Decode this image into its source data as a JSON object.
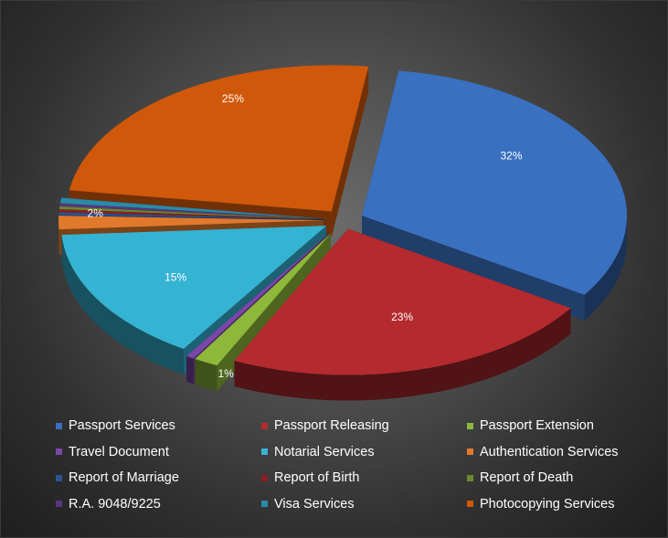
{
  "chart_data": {
    "type": "pie",
    "style": "3d-exploded",
    "legend_position": "bottom",
    "categories": [
      "Passport Services",
      "Passport Releasing",
      "Passport Extension",
      "Travel Document",
      "Notarial Services",
      "Authentication Services",
      "Report of Marriage",
      "Report of Birth",
      "Report of Death",
      "R.A. 9048/9225",
      "Visa Services",
      "Photocopying Services"
    ],
    "values": [
      32,
      23,
      1.5,
      0.5,
      15,
      1.5,
      0.3,
      0.3,
      0.3,
      0.3,
      0.6,
      25
    ],
    "data_labels": [
      "32%",
      "23%",
      "1%",
      "",
      "15%",
      "2%",
      "",
      "",
      "",
      "",
      "",
      "25%"
    ],
    "colors": [
      "#3a70c0",
      "#b52a2e",
      "#8db83a",
      "#7a46a8",
      "#35b3d3",
      "#e0792c",
      "#2a5490",
      "#8a2025",
      "#6a8a2e",
      "#5a3580",
      "#2a8aa8",
      "#d0580a"
    ]
  }
}
